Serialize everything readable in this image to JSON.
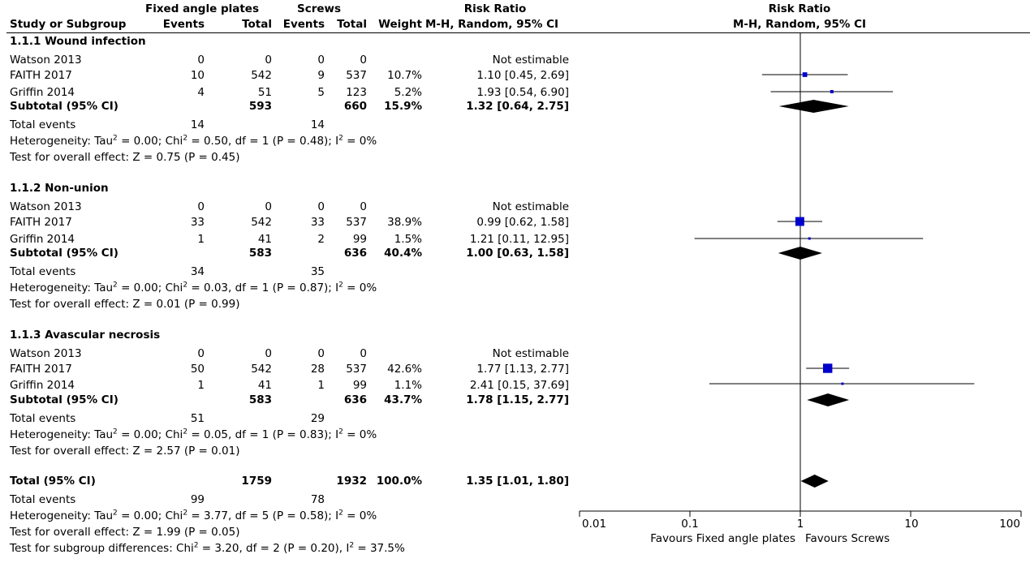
{
  "header": {
    "study_col": "Study or Subgroup",
    "group1": "Fixed angle plates",
    "group2": "Screws",
    "events": "Events",
    "total": "Total",
    "weight": "Weight",
    "rr_title": "Risk Ratio",
    "rr_method": "M-H, Random, 95% CI",
    "plot_title": "Risk Ratio",
    "plot_method": "M-H, Random, 95% CI"
  },
  "subgroups": [
    {
      "title": "1.1.1 Wound infection",
      "studies": [
        {
          "name": "Watson 2013",
          "e1": "0",
          "n1": "0",
          "e2": "0",
          "n2": "0",
          "weight": "",
          "ci": "Not estimable"
        },
        {
          "name": "FAITH 2017",
          "e1": "10",
          "n1": "542",
          "e2": "9",
          "n2": "537",
          "weight": "10.7%",
          "ci": "1.10 [0.45, 2.69]"
        },
        {
          "name": "Griffin 2014",
          "e1": "4",
          "n1": "51",
          "e2": "5",
          "n2": "123",
          "weight": "5.2%",
          "ci": "1.93 [0.54, 6.90]"
        }
      ],
      "subtotal": {
        "label": "Subtotal (95% CI)",
        "n1": "593",
        "n2": "660",
        "weight": "15.9%",
        "ci": "1.32 [0.64, 2.75]"
      },
      "events": {
        "label": "Total events",
        "e1": "14",
        "e2": "14"
      },
      "het": {
        "pre": "Heterogeneity: Tau",
        "mid1": " = 0.00; Chi",
        "mid2": " = 0.50, df = 1 (P = 0.48); I",
        "post": " = 0%"
      },
      "overall": "Test for overall effect: Z = 0.75 (P = 0.45)"
    },
    {
      "title": "1.1.2 Non-union",
      "studies": [
        {
          "name": "Watson 2013",
          "e1": "0",
          "n1": "0",
          "e2": "0",
          "n2": "0",
          "weight": "",
          "ci": "Not estimable"
        },
        {
          "name": "FAITH 2017",
          "e1": "33",
          "n1": "542",
          "e2": "33",
          "n2": "537",
          "weight": "38.9%",
          "ci": "0.99 [0.62, 1.58]"
        },
        {
          "name": "Griffin 2014",
          "e1": "1",
          "n1": "41",
          "e2": "2",
          "n2": "99",
          "weight": "1.5%",
          "ci": "1.21 [0.11, 12.95]"
        }
      ],
      "subtotal": {
        "label": "Subtotal (95% CI)",
        "n1": "583",
        "n2": "636",
        "weight": "40.4%",
        "ci": "1.00 [0.63, 1.58]"
      },
      "events": {
        "label": "Total events",
        "e1": "34",
        "e2": "35"
      },
      "het": {
        "pre": "Heterogeneity: Tau",
        "mid1": " = 0.00; Chi",
        "mid2": " = 0.03, df = 1 (P = 0.87); I",
        "post": " = 0%"
      },
      "overall": "Test for overall effect: Z = 0.01 (P = 0.99)"
    },
    {
      "title": "1.1.3 Avascular necrosis",
      "studies": [
        {
          "name": "Watson 2013",
          "e1": "0",
          "n1": "0",
          "e2": "0",
          "n2": "0",
          "weight": "",
          "ci": "Not estimable"
        },
        {
          "name": "FAITH 2017",
          "e1": "50",
          "n1": "542",
          "e2": "28",
          "n2": "537",
          "weight": "42.6%",
          "ci": "1.77 [1.13, 2.77]"
        },
        {
          "name": "Griffin 2014",
          "e1": "1",
          "n1": "41",
          "e2": "1",
          "n2": "99",
          "weight": "1.1%",
          "ci": "2.41 [0.15, 37.69]"
        }
      ],
      "subtotal": {
        "label": "Subtotal (95% CI)",
        "n1": "583",
        "n2": "636",
        "weight": "43.7%",
        "ci": "1.78 [1.15, 2.77]"
      },
      "events": {
        "label": "Total events",
        "e1": "51",
        "e2": "29"
      },
      "het": {
        "pre": "Heterogeneity: Tau",
        "mid1": " = 0.00; Chi",
        "mid2": " = 0.05, df = 1 (P = 0.83); I",
        "post": " = 0%"
      },
      "overall": "Test for overall effect: Z = 2.57 (P = 0.01)"
    }
  ],
  "total": {
    "label": "Total (95% CI)",
    "n1": "1759",
    "n2": "1932",
    "weight": "100.0%",
    "ci": "1.35 [1.01, 1.80]",
    "events": {
      "label": "Total events",
      "e1": "99",
      "e2": "78"
    },
    "het": {
      "pre": "Heterogeneity: Tau",
      "mid1": " = 0.00; Chi",
      "mid2": " = 3.77, df = 5 (P = 0.58); I",
      "post": " = 0%"
    },
    "overall": "Test for overall effect: Z = 1.99 (P = 0.05)",
    "subgroup_diff": {
      "pre": "Test for subgroup differences: Chi",
      "mid": " = 3.20, df = 2 (P = 0.20), I",
      "post": " = 37.5%"
    }
  },
  "sup2": "2",
  "axis": {
    "ticks": [
      "0.01",
      "0.1",
      "1",
      "10",
      "100"
    ],
    "favours_left": "Favours Fixed angle plates",
    "favours_right": "Favours Screws"
  },
  "chart_data": {
    "type": "forest",
    "scale": "log",
    "xlim": [
      0.01,
      100
    ],
    "null_value": 1,
    "studies": [
      {
        "subgroup": "1.1.1 Wound infection",
        "study": "FAITH 2017",
        "rr": 1.1,
        "lo": 0.45,
        "hi": 2.69,
        "weight": 10.7
      },
      {
        "subgroup": "1.1.1 Wound infection",
        "study": "Griffin 2014",
        "rr": 1.93,
        "lo": 0.54,
        "hi": 6.9,
        "weight": 5.2
      },
      {
        "subgroup": "1.1.2 Non-union",
        "study": "FAITH 2017",
        "rr": 0.99,
        "lo": 0.62,
        "hi": 1.58,
        "weight": 38.9
      },
      {
        "subgroup": "1.1.2 Non-union",
        "study": "Griffin 2014",
        "rr": 1.21,
        "lo": 0.11,
        "hi": 12.95,
        "weight": 1.5
      },
      {
        "subgroup": "1.1.3 Avascular necrosis",
        "study": "FAITH 2017",
        "rr": 1.77,
        "lo": 1.13,
        "hi": 2.77,
        "weight": 42.6
      },
      {
        "subgroup": "1.1.3 Avascular necrosis",
        "study": "Griffin 2014",
        "rr": 2.41,
        "lo": 0.15,
        "hi": 37.69,
        "weight": 1.1
      }
    ],
    "summaries": [
      {
        "label": "1.1.1 Wound infection",
        "rr": 1.32,
        "lo": 0.64,
        "hi": 2.75
      },
      {
        "label": "1.1.2 Non-union",
        "rr": 1.0,
        "lo": 0.63,
        "hi": 1.58
      },
      {
        "label": "1.1.3 Avascular necrosis",
        "rr": 1.78,
        "lo": 1.15,
        "hi": 2.77
      },
      {
        "label": "Total",
        "rr": 1.35,
        "lo": 1.01,
        "hi": 1.8
      }
    ],
    "colors": {
      "box": "#0000cc",
      "diamond": "#000000"
    }
  }
}
